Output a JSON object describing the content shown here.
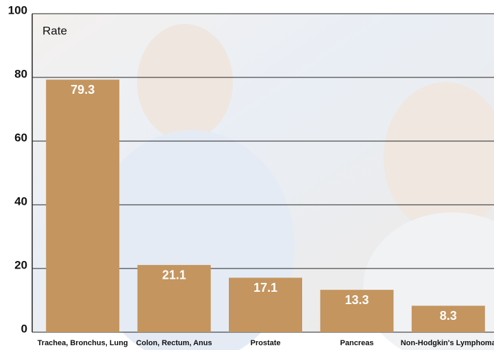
{
  "chart_data": {
    "type": "bar",
    "y_label": "Rate",
    "categories": [
      "Trachea, Bronchus, Lung",
      "Colon, Rectum, Anus",
      "Prostate",
      "Pancreas",
      "Non-Hodgkin's Lymphoma"
    ],
    "values": [
      79.3,
      21.1,
      17.1,
      13.3,
      8.3
    ],
    "color": "#c4955f",
    "ylim": [
      0,
      100
    ],
    "yticks": [
      0,
      20,
      40,
      60,
      80,
      100
    ],
    "grid": true
  }
}
